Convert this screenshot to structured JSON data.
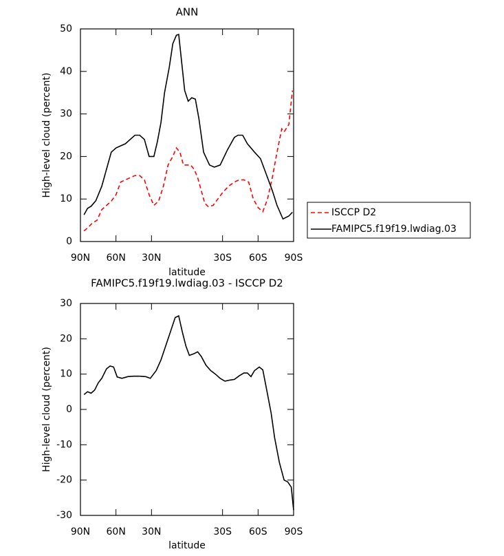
{
  "chart_data": [
    {
      "type": "line",
      "title": "ANN",
      "xlabel": "latitude",
      "ylabel": "High-level cloud (percent)",
      "xlim": [
        90,
        -90
      ],
      "ylim": [
        0,
        50
      ],
      "xticks": [
        {
          "value": 90,
          "label": "90N"
        },
        {
          "value": 60,
          "label": "60N"
        },
        {
          "value": 30,
          "label": "30N"
        },
        {
          "value": -30,
          "label": "30S"
        },
        {
          "value": -60,
          "label": "60S"
        },
        {
          "value": -90,
          "label": "90S"
        }
      ],
      "yticks": [
        0,
        10,
        20,
        30,
        40,
        50
      ],
      "legend": "right",
      "series": [
        {
          "name": "ISCCP D2",
          "color": "#ff0000",
          "linestyle": "dashed",
          "x": [
            87,
            84,
            80,
            76,
            72,
            68,
            64,
            60,
            56,
            52,
            48,
            44,
            40,
            36,
            32,
            28,
            24,
            20,
            16,
            12,
            9,
            6,
            3,
            0,
            -3,
            -6,
            -9,
            -12,
            -15,
            -18,
            -22,
            -26,
            -30,
            -35,
            -40,
            -44,
            -48,
            -52,
            -56,
            -60,
            -64,
            -68,
            -72,
            -76,
            -80,
            -82,
            -86,
            -89
          ],
          "values": [
            2.5,
            3.2,
            4.3,
            5,
            7.5,
            8.5,
            9.5,
            11,
            14,
            14.5,
            15,
            15.5,
            15.5,
            14.5,
            11,
            8.5,
            9.5,
            13,
            18,
            20,
            22,
            21,
            18,
            18,
            18,
            17,
            15,
            12,
            9,
            8.2,
            8.5,
            10,
            11.5,
            13,
            14,
            14.5,
            14.5,
            14,
            10,
            8,
            7,
            10,
            15,
            21,
            26.5,
            25.8,
            27.5,
            35.5
          ]
        },
        {
          "name": "FAMIPC5.f19f19.lwdiag.03",
          "color": "#000000",
          "linestyle": "solid",
          "x": [
            87,
            84,
            81,
            77,
            72,
            68,
            64,
            60,
            56,
            52,
            48,
            44,
            40,
            36,
            32,
            28,
            25,
            22,
            19,
            15,
            12,
            9,
            7,
            2,
            -1,
            -4,
            -7,
            -10,
            -14,
            -19,
            -23,
            -28,
            -34,
            -40,
            -43,
            -47,
            -51,
            -57,
            -62,
            -66,
            -72,
            -76,
            -81,
            -86,
            -89
          ],
          "values": [
            6.3,
            7.8,
            8.3,
            9.6,
            13,
            17,
            21,
            22,
            22.5,
            23,
            24,
            25,
            25,
            24,
            20,
            20,
            23.5,
            28,
            35,
            41,
            46.5,
            48.5,
            48.7,
            35.5,
            33,
            33.8,
            33.5,
            29,
            21,
            18,
            17.5,
            18,
            21.5,
            24.5,
            25,
            25,
            23,
            21,
            19.5,
            16.5,
            12,
            8.5,
            5.3,
            6,
            6.9
          ]
        }
      ]
    },
    {
      "type": "line",
      "title": "FAMIPC5.f19f19.lwdiag.03 - ISCCP D2",
      "xlabel": "latitude",
      "ylabel": "High-level cloud (percent)",
      "xlim": [
        90,
        -90
      ],
      "ylim": [
        -30,
        30
      ],
      "xticks": [
        {
          "value": 90,
          "label": "90N"
        },
        {
          "value": 60,
          "label": "60N"
        },
        {
          "value": 30,
          "label": "30N"
        },
        {
          "value": -30,
          "label": "30S"
        },
        {
          "value": -60,
          "label": "60S"
        },
        {
          "value": -90,
          "label": "90S"
        }
      ],
      "yticks": [
        -30,
        -20,
        -10,
        0,
        10,
        20,
        30
      ],
      "series": [
        {
          "color": "#000000",
          "linestyle": "solid",
          "x": [
            87,
            84,
            81,
            78,
            75,
            72,
            68,
            65,
            62,
            59,
            55,
            50,
            45,
            40,
            35,
            31,
            26,
            22,
            18,
            14,
            10,
            7,
            4,
            1,
            -2,
            -6,
            -9,
            -12,
            -16,
            -20,
            -24,
            -28,
            -32,
            -36,
            -40,
            -44,
            -48,
            -51,
            -54,
            -57,
            -61,
            -64,
            -67,
            -71,
            -74,
            -78,
            -82,
            -85,
            -88,
            -90
          ],
          "values": [
            4.2,
            5,
            4.6,
            5.5,
            7.5,
            8.8,
            11.5,
            12.3,
            12,
            9.2,
            8.8,
            9.3,
            9.4,
            9.4,
            9.3,
            8.8,
            11,
            14,
            18,
            22,
            26,
            26.5,
            22,
            18,
            15.3,
            15.8,
            16.3,
            15,
            12.5,
            11,
            10,
            8.8,
            8,
            8.3,
            8.5,
            9.5,
            10.3,
            10.3,
            9.3,
            11,
            12,
            11.2,
            6,
            -1,
            -8,
            -15,
            -20,
            -20.5,
            -22,
            -28.5
          ]
        }
      ]
    }
  ]
}
